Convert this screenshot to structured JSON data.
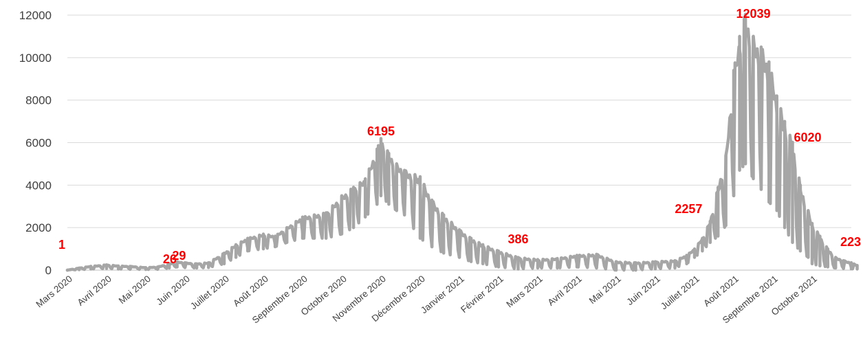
{
  "chart_data": {
    "type": "line",
    "title": "",
    "xlabel": "",
    "ylabel": "",
    "ylim": [
      0,
      12000
    ],
    "yticks": [
      0,
      2000,
      4000,
      6000,
      8000,
      10000,
      12000
    ],
    "grid": "horizontal",
    "legend": "none",
    "x_ticks": [
      "Mars 2020",
      "Avril 2020",
      "Mai 2020",
      "Juin 2020",
      "Juillet 2020",
      "Août 2020",
      "Septembre 2020",
      "Octobre 2020",
      "Novembre 2020",
      "Décembre 2020",
      "Janvier 2021",
      "Février 2021",
      "Mars 2021",
      "Avril 2021",
      "Mai 2021",
      "Juin 2021",
      "Juillet 2021",
      "Août 2021",
      "Septembre 2021",
      "Octobre 2021"
    ],
    "series": [
      {
        "color": "#a6a6a6",
        "envelope": {
          "x": [
            0,
            0.3,
            0.6,
            1.0,
            1.3,
            1.6,
            2.0,
            2.3,
            2.6,
            2.8,
            3.0,
            3.3,
            3.6,
            4.0,
            4.3,
            4.6,
            5.0,
            5.3,
            5.6,
            6.0,
            6.3,
            6.6,
            7.0,
            7.3,
            7.6,
            7.9,
            8.0,
            8.2,
            8.4,
            8.6,
            9.0,
            9.3,
            9.6,
            10.0,
            10.3,
            10.6,
            11.0,
            11.5,
            12.0,
            12.5,
            13.0,
            13.5,
            14.0,
            14.5,
            15.0,
            15.5,
            15.8,
            16.0,
            16.2,
            16.4,
            16.6,
            16.8,
            17.0,
            17.15,
            17.3,
            17.5,
            17.7,
            17.9,
            18.1,
            18.3,
            18.5,
            18.7,
            18.9,
            19.0,
            19.2,
            19.4,
            19.6,
            19.8,
            20.0,
            20.15
          ],
          "high": [
            1,
            100,
            180,
            250,
            200,
            180,
            120,
            150,
            300,
            400,
            350,
            300,
            350,
            800,
            1200,
            1500,
            1700,
            1600,
            2000,
            2500,
            2600,
            2700,
            3500,
            3900,
            4300,
            5700,
            6195,
            5500,
            5000,
            4700,
            4400,
            3300,
            2600,
            1900,
            1500,
            1200,
            900,
            600,
            500,
            550,
            700,
            750,
            400,
            350,
            400,
            450,
            700,
            1000,
            1500,
            2300,
            3900,
            5400,
            9400,
            11000,
            12039,
            11000,
            10500,
            9800,
            8200,
            7000,
            6020,
            4000,
            2800,
            2200,
            1600,
            1000,
            600,
            450,
            350,
            223
          ],
          "low": [
            0,
            20,
            50,
            80,
            50,
            40,
            30,
            40,
            100,
            150,
            120,
            100,
            120,
            300,
            600,
            900,
            1000,
            1100,
            1300,
            1500,
            1500,
            1500,
            1700,
            2000,
            2500,
            3100,
            3500,
            3100,
            2800,
            2600,
            1500,
            1100,
            800,
            600,
            400,
            300,
            150,
            50,
            100,
            100,
            150,
            100,
            0,
            0,
            60,
            100,
            300,
            600,
            900,
            1300,
            1600,
            2100,
            3500,
            4700,
            5000,
            4300,
            3800,
            3200,
            2800,
            2000,
            1300,
            900,
            600,
            300,
            200,
            150,
            100,
            80,
            60,
            50
          ]
        }
      }
    ],
    "data_labels": [
      {
        "x": 0,
        "y": 1,
        "text": "1"
      },
      {
        "x": 2.7,
        "y": 26,
        "text": "26"
      },
      {
        "x": 2.85,
        "y": 29,
        "text": "29"
      },
      {
        "x": 8.0,
        "y": 6195,
        "text": "6195"
      },
      {
        "x": 11.5,
        "y": 386,
        "text": "386"
      },
      {
        "x": 16.2,
        "y": 2257,
        "text": "2257"
      },
      {
        "x": 17.15,
        "y": 12039,
        "text": "12039"
      },
      {
        "x": 18.5,
        "y": 6020,
        "text": "6020"
      },
      {
        "x": 20.15,
        "y": 223,
        "text": "223"
      }
    ],
    "label_color": "#ff0000"
  }
}
